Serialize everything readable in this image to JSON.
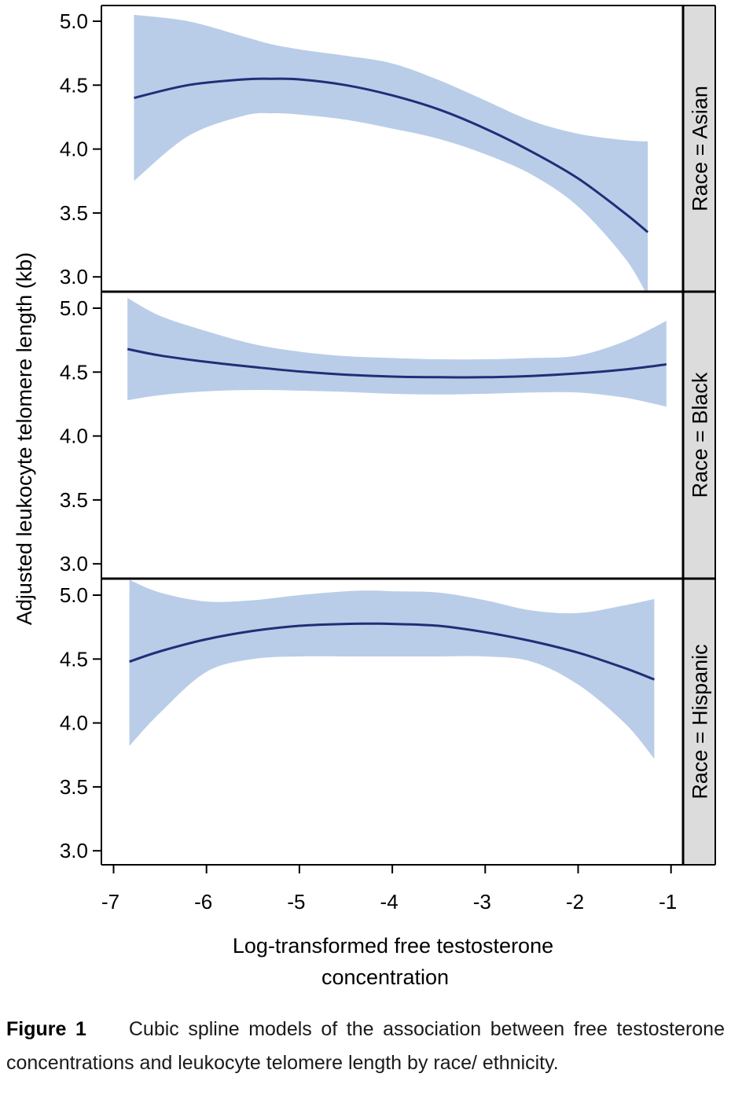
{
  "chart_data": {
    "type": "line",
    "subtype": "cubic spline with 95% confidence band, faceted by race",
    "xlabel_lines": [
      "Log-transformed free testosterone",
      "concentration"
    ],
    "ylabel": "Adjusted leukocyte telomere length (kb)",
    "xlim": [
      -7.1,
      -0.95
    ],
    "ylim": [
      2.9,
      5.1
    ],
    "x_ticks": [
      -7,
      -6,
      -5,
      -4,
      -3,
      -2,
      -1
    ],
    "x_tick_labels": [
      "-7",
      "-6",
      "-5",
      "-4",
      "-3",
      "-2",
      "-1"
    ],
    "y_ticks": [
      3.0,
      3.5,
      4.0,
      4.5,
      5.0
    ],
    "y_tick_labels": [
      "3.0",
      "3.5",
      "4.0",
      "4.5",
      "5.0"
    ],
    "colors": {
      "line": "#1f2f78",
      "band": "#b9cde8",
      "strip": "#dcdcdc",
      "frame": "#000000"
    },
    "panels": [
      {
        "strip_label": "Race = Asian",
        "x": [
          -6.78,
          -6.2,
          -5.6,
          -5.3,
          -5.0,
          -4.5,
          -4.0,
          -3.5,
          -3.0,
          -2.5,
          -2.0,
          -1.5,
          -1.25
        ],
        "y": [
          4.4,
          4.5,
          4.545,
          4.55,
          4.545,
          4.5,
          4.42,
          4.31,
          4.16,
          3.98,
          3.77,
          3.5,
          3.35
        ],
        "lower": [
          3.75,
          4.1,
          4.26,
          4.28,
          4.27,
          4.23,
          4.16,
          4.08,
          3.96,
          3.8,
          3.55,
          3.15,
          2.85
        ],
        "upper": [
          5.05,
          5.0,
          4.88,
          4.82,
          4.78,
          4.73,
          4.67,
          4.54,
          4.38,
          4.22,
          4.12,
          4.07,
          4.06
        ]
      },
      {
        "strip_label": "Race = Black",
        "x": [
          -6.85,
          -6.5,
          -6.0,
          -5.5,
          -5.0,
          -4.5,
          -4.0,
          -3.5,
          -3.0,
          -2.5,
          -2.0,
          -1.5,
          -1.05
        ],
        "y": [
          4.68,
          4.63,
          4.58,
          4.54,
          4.505,
          4.48,
          4.465,
          4.46,
          4.46,
          4.47,
          4.49,
          4.52,
          4.56
        ],
        "lower": [
          4.28,
          4.32,
          4.35,
          4.36,
          4.355,
          4.345,
          4.33,
          4.325,
          4.33,
          4.34,
          4.34,
          4.3,
          4.23
        ],
        "upper": [
          5.08,
          4.94,
          4.82,
          4.72,
          4.66,
          4.625,
          4.61,
          4.6,
          4.6,
          4.61,
          4.63,
          4.74,
          4.9
        ]
      },
      {
        "strip_label": "Race = Hispanic",
        "x": [
          -6.83,
          -6.5,
          -6.0,
          -5.5,
          -5.0,
          -4.5,
          -4.2,
          -4.0,
          -3.5,
          -3.0,
          -2.5,
          -2.0,
          -1.5,
          -1.18
        ],
        "y": [
          4.48,
          4.56,
          4.655,
          4.72,
          4.76,
          4.775,
          4.777,
          4.775,
          4.76,
          4.71,
          4.64,
          4.55,
          4.43,
          4.34
        ],
        "lower": [
          3.82,
          4.08,
          4.4,
          4.5,
          4.52,
          4.52,
          4.52,
          4.52,
          4.52,
          4.52,
          4.48,
          4.3,
          4.0,
          3.72
        ],
        "upper": [
          5.12,
          5.02,
          4.95,
          4.96,
          5.0,
          5.03,
          5.035,
          5.03,
          5.02,
          4.96,
          4.88,
          4.86,
          4.92,
          4.97
        ]
      }
    ]
  },
  "caption": {
    "label": "Figure 1",
    "text": "Cubic spline models of the association between free testosterone concentrations and leukocyte telomere length by race/ ethnicity."
  }
}
